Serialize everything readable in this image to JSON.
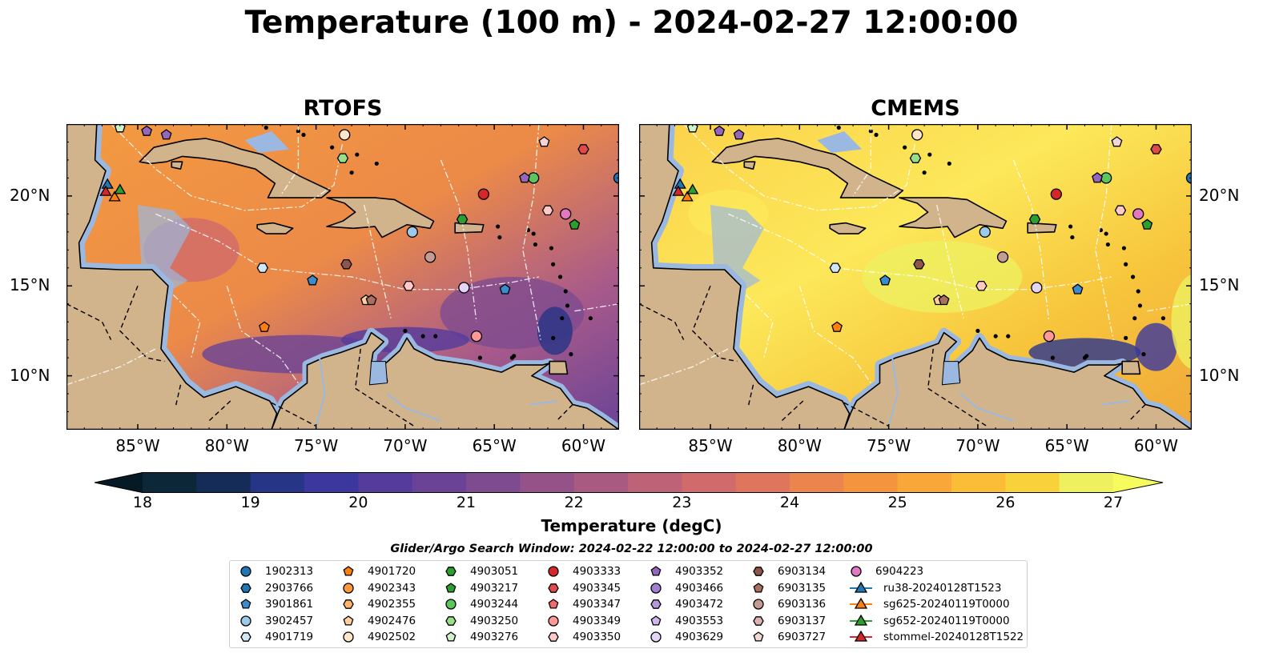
{
  "title": "Temperature (100 m) - 2024-02-27 12:00:00",
  "panels": [
    {
      "title": "RTOFS",
      "scheme": "warm"
    },
    {
      "title": "CMEMS",
      "scheme": "hot"
    }
  ],
  "lon_labels": [
    "85°W",
    "80°W",
    "75°W",
    "70°W",
    "65°W",
    "60°W"
  ],
  "lon_values": [
    -85,
    -80,
    -75,
    -70,
    -65,
    -60
  ],
  "lat_labels": [
    "20°N",
    "15°N",
    "10°N"
  ],
  "lat_values": [
    20,
    15,
    10
  ],
  "map_extent": {
    "lon_min": -89,
    "lon_max": -58,
    "lat_min": 7,
    "lat_max": 24
  },
  "colorbar": {
    "label": "Temperature (degC)",
    "ticks": [
      "18",
      "19",
      "20",
      "21",
      "22",
      "23",
      "24",
      "25",
      "26",
      "27"
    ],
    "min": 18,
    "max": 27,
    "step": 0.5,
    "colors": [
      "#0b2738",
      "#152c58",
      "#263586",
      "#3b379e",
      "#553b9c",
      "#6a4396",
      "#7e4b90",
      "#945289",
      "#a95a81",
      "#bd6277",
      "#d06a6b",
      "#e0755d",
      "#ec844d",
      "#f5943f",
      "#f9a739",
      "#fbbc37",
      "#f7d23a",
      "#eef060"
    ]
  },
  "search_window": "Glider/Argo Search Window: 2024-02-22 12:00:00 to 2024-02-27 12:00:00",
  "legend": {
    "items": [
      {
        "label": "1902313",
        "marker": "circle",
        "color": "#1f77b4"
      },
      {
        "label": "2903766",
        "marker": "hexagon",
        "color": "#1f77b4"
      },
      {
        "label": "3901861",
        "marker": "pentagon",
        "color": "#3a8ccf"
      },
      {
        "label": "3902457",
        "marker": "circle",
        "color": "#9ecae9"
      },
      {
        "label": "4901719",
        "marker": "hexagon",
        "color": "#cfe7f7"
      },
      {
        "label": "4901720",
        "marker": "pentagon",
        "color": "#ff7f0e"
      },
      {
        "label": "4902343",
        "marker": "circle",
        "color": "#ff9a3c"
      },
      {
        "label": "4902355",
        "marker": "hexagon",
        "color": "#ffb46a"
      },
      {
        "label": "4902476",
        "marker": "pentagon",
        "color": "#ffcf9e"
      },
      {
        "label": "4902502",
        "marker": "circle",
        "color": "#ffe6c9"
      },
      {
        "label": "4903051",
        "marker": "hexagon",
        "color": "#2ca02c"
      },
      {
        "label": "4903217",
        "marker": "pentagon",
        "color": "#2ca02c"
      },
      {
        "label": "4903244",
        "marker": "circle",
        "color": "#5cc55c"
      },
      {
        "label": "4903250",
        "marker": "hexagon",
        "color": "#98df8a"
      },
      {
        "label": "4903276",
        "marker": "pentagon",
        "color": "#cff2c6"
      },
      {
        "label": "4903333",
        "marker": "circle",
        "color": "#d62728"
      },
      {
        "label": "4903345",
        "marker": "hexagon",
        "color": "#e04a4a"
      },
      {
        "label": "4903347",
        "marker": "pentagon",
        "color": "#ee6c6c"
      },
      {
        "label": "4903349",
        "marker": "circle",
        "color": "#ff9896"
      },
      {
        "label": "4903350",
        "marker": "hexagon",
        "color": "#ffc9c8"
      },
      {
        "label": "4903352",
        "marker": "pentagon",
        "color": "#9467bd"
      },
      {
        "label": "4903466",
        "marker": "circle",
        "color": "#a27fd0"
      },
      {
        "label": "4903472",
        "marker": "hexagon",
        "color": "#b896e0"
      },
      {
        "label": "4903553",
        "marker": "pentagon",
        "color": "#cfb6ee"
      },
      {
        "label": "4903629",
        "marker": "circle",
        "color": "#e4d4f7"
      },
      {
        "label": "6903134",
        "marker": "hexagon",
        "color": "#8c564b"
      },
      {
        "label": "6903135",
        "marker": "pentagon",
        "color": "#a8705f"
      },
      {
        "label": "6903136",
        "marker": "circle",
        "color": "#c49c94"
      },
      {
        "label": "6903137",
        "marker": "hexagon",
        "color": "#dbb4ad"
      },
      {
        "label": "6903727",
        "marker": "pentagon",
        "color": "#f3d6d1"
      },
      {
        "label": "6904223",
        "marker": "circle",
        "color": "#e377c2"
      },
      {
        "label": "ru38-20240128T1523",
        "marker": "triangle",
        "color": "#1f77b4"
      },
      {
        "label": "sg625-20240119T0000",
        "marker": "triangle",
        "color": "#ff7f0e"
      },
      {
        "label": "sg652-20240119T0000",
        "marker": "triangle",
        "color": "#2ca02c"
      },
      {
        "label": "stommel-20240128T1522",
        "marker": "triangle",
        "color": "#d62728"
      }
    ]
  },
  "observations": [
    {
      "lon": -58.0,
      "lat": 21.0,
      "marker": "circle",
      "color": "#1f77b4"
    },
    {
      "lon": -75.2,
      "lat": 15.3,
      "marker": "pentagon",
      "color": "#3a8ccf"
    },
    {
      "lon": -64.4,
      "lat": 14.8,
      "marker": "pentagon",
      "color": "#3a8ccf"
    },
    {
      "lon": -69.6,
      "lat": 18.0,
      "marker": "circle",
      "color": "#9ecae9"
    },
    {
      "lon": -78.0,
      "lat": 16.0,
      "marker": "hexagon",
      "color": "#cfe7f7"
    },
    {
      "lon": -77.9,
      "lat": 12.7,
      "marker": "pentagon",
      "color": "#ff7f0e"
    },
    {
      "lon": -72.2,
      "lat": 14.2,
      "marker": "pentagon",
      "color": "#ffcf9e"
    },
    {
      "lon": -73.4,
      "lat": 23.4,
      "marker": "circle",
      "color": "#ffe6c9"
    },
    {
      "lon": -66.8,
      "lat": 18.7,
      "marker": "hexagon",
      "color": "#2ca02c"
    },
    {
      "lon": -60.5,
      "lat": 18.4,
      "marker": "pentagon",
      "color": "#2ca02c"
    },
    {
      "lon": -62.8,
      "lat": 21.0,
      "marker": "circle",
      "color": "#5cc55c"
    },
    {
      "lon": -73.5,
      "lat": 22.1,
      "marker": "hexagon",
      "color": "#98df8a"
    },
    {
      "lon": -86.0,
      "lat": 23.8,
      "marker": "pentagon",
      "color": "#cff2c6"
    },
    {
      "lon": -65.6,
      "lat": 20.1,
      "marker": "circle",
      "color": "#d62728"
    },
    {
      "lon": -60.0,
      "lat": 22.6,
      "marker": "hexagon",
      "color": "#e04a4a"
    },
    {
      "lon": -66.0,
      "lat": 12.2,
      "marker": "circle",
      "color": "#ff9896"
    },
    {
      "lon": -69.8,
      "lat": 15.0,
      "marker": "hexagon",
      "color": "#ffc9c8"
    },
    {
      "lon": -62.0,
      "lat": 19.2,
      "marker": "hexagon",
      "color": "#ffc9c8"
    },
    {
      "lon": -63.3,
      "lat": 21.0,
      "marker": "pentagon",
      "color": "#9467bd"
    },
    {
      "lon": -84.5,
      "lat": 23.6,
      "marker": "pentagon",
      "color": "#9467bd"
    },
    {
      "lon": -83.4,
      "lat": 23.4,
      "marker": "pentagon",
      "color": "#9467bd"
    },
    {
      "lon": -66.7,
      "lat": 14.9,
      "marker": "circle",
      "color": "#e4d4f7"
    },
    {
      "lon": -73.3,
      "lat": 16.2,
      "marker": "hexagon",
      "color": "#8c564b"
    },
    {
      "lon": -71.9,
      "lat": 14.2,
      "marker": "pentagon",
      "color": "#a8705f"
    },
    {
      "lon": -68.6,
      "lat": 16.6,
      "marker": "circle",
      "color": "#c49c94"
    },
    {
      "lon": -62.2,
      "lat": 23.0,
      "marker": "pentagon",
      "color": "#f3d6d1"
    },
    {
      "lon": -61.0,
      "lat": 19.0,
      "marker": "circle",
      "color": "#e377c2"
    },
    {
      "lon": -86.7,
      "lat": 20.6,
      "marker": "triangle",
      "color": "#1f77b4"
    },
    {
      "lon": -86.3,
      "lat": 19.9,
      "marker": "triangle",
      "color": "#ff7f0e"
    },
    {
      "lon": -86.0,
      "lat": 20.3,
      "marker": "triangle",
      "color": "#2ca02c"
    },
    {
      "lon": -86.8,
      "lat": 20.2,
      "marker": "triangle",
      "color": "#d62728"
    }
  ]
}
